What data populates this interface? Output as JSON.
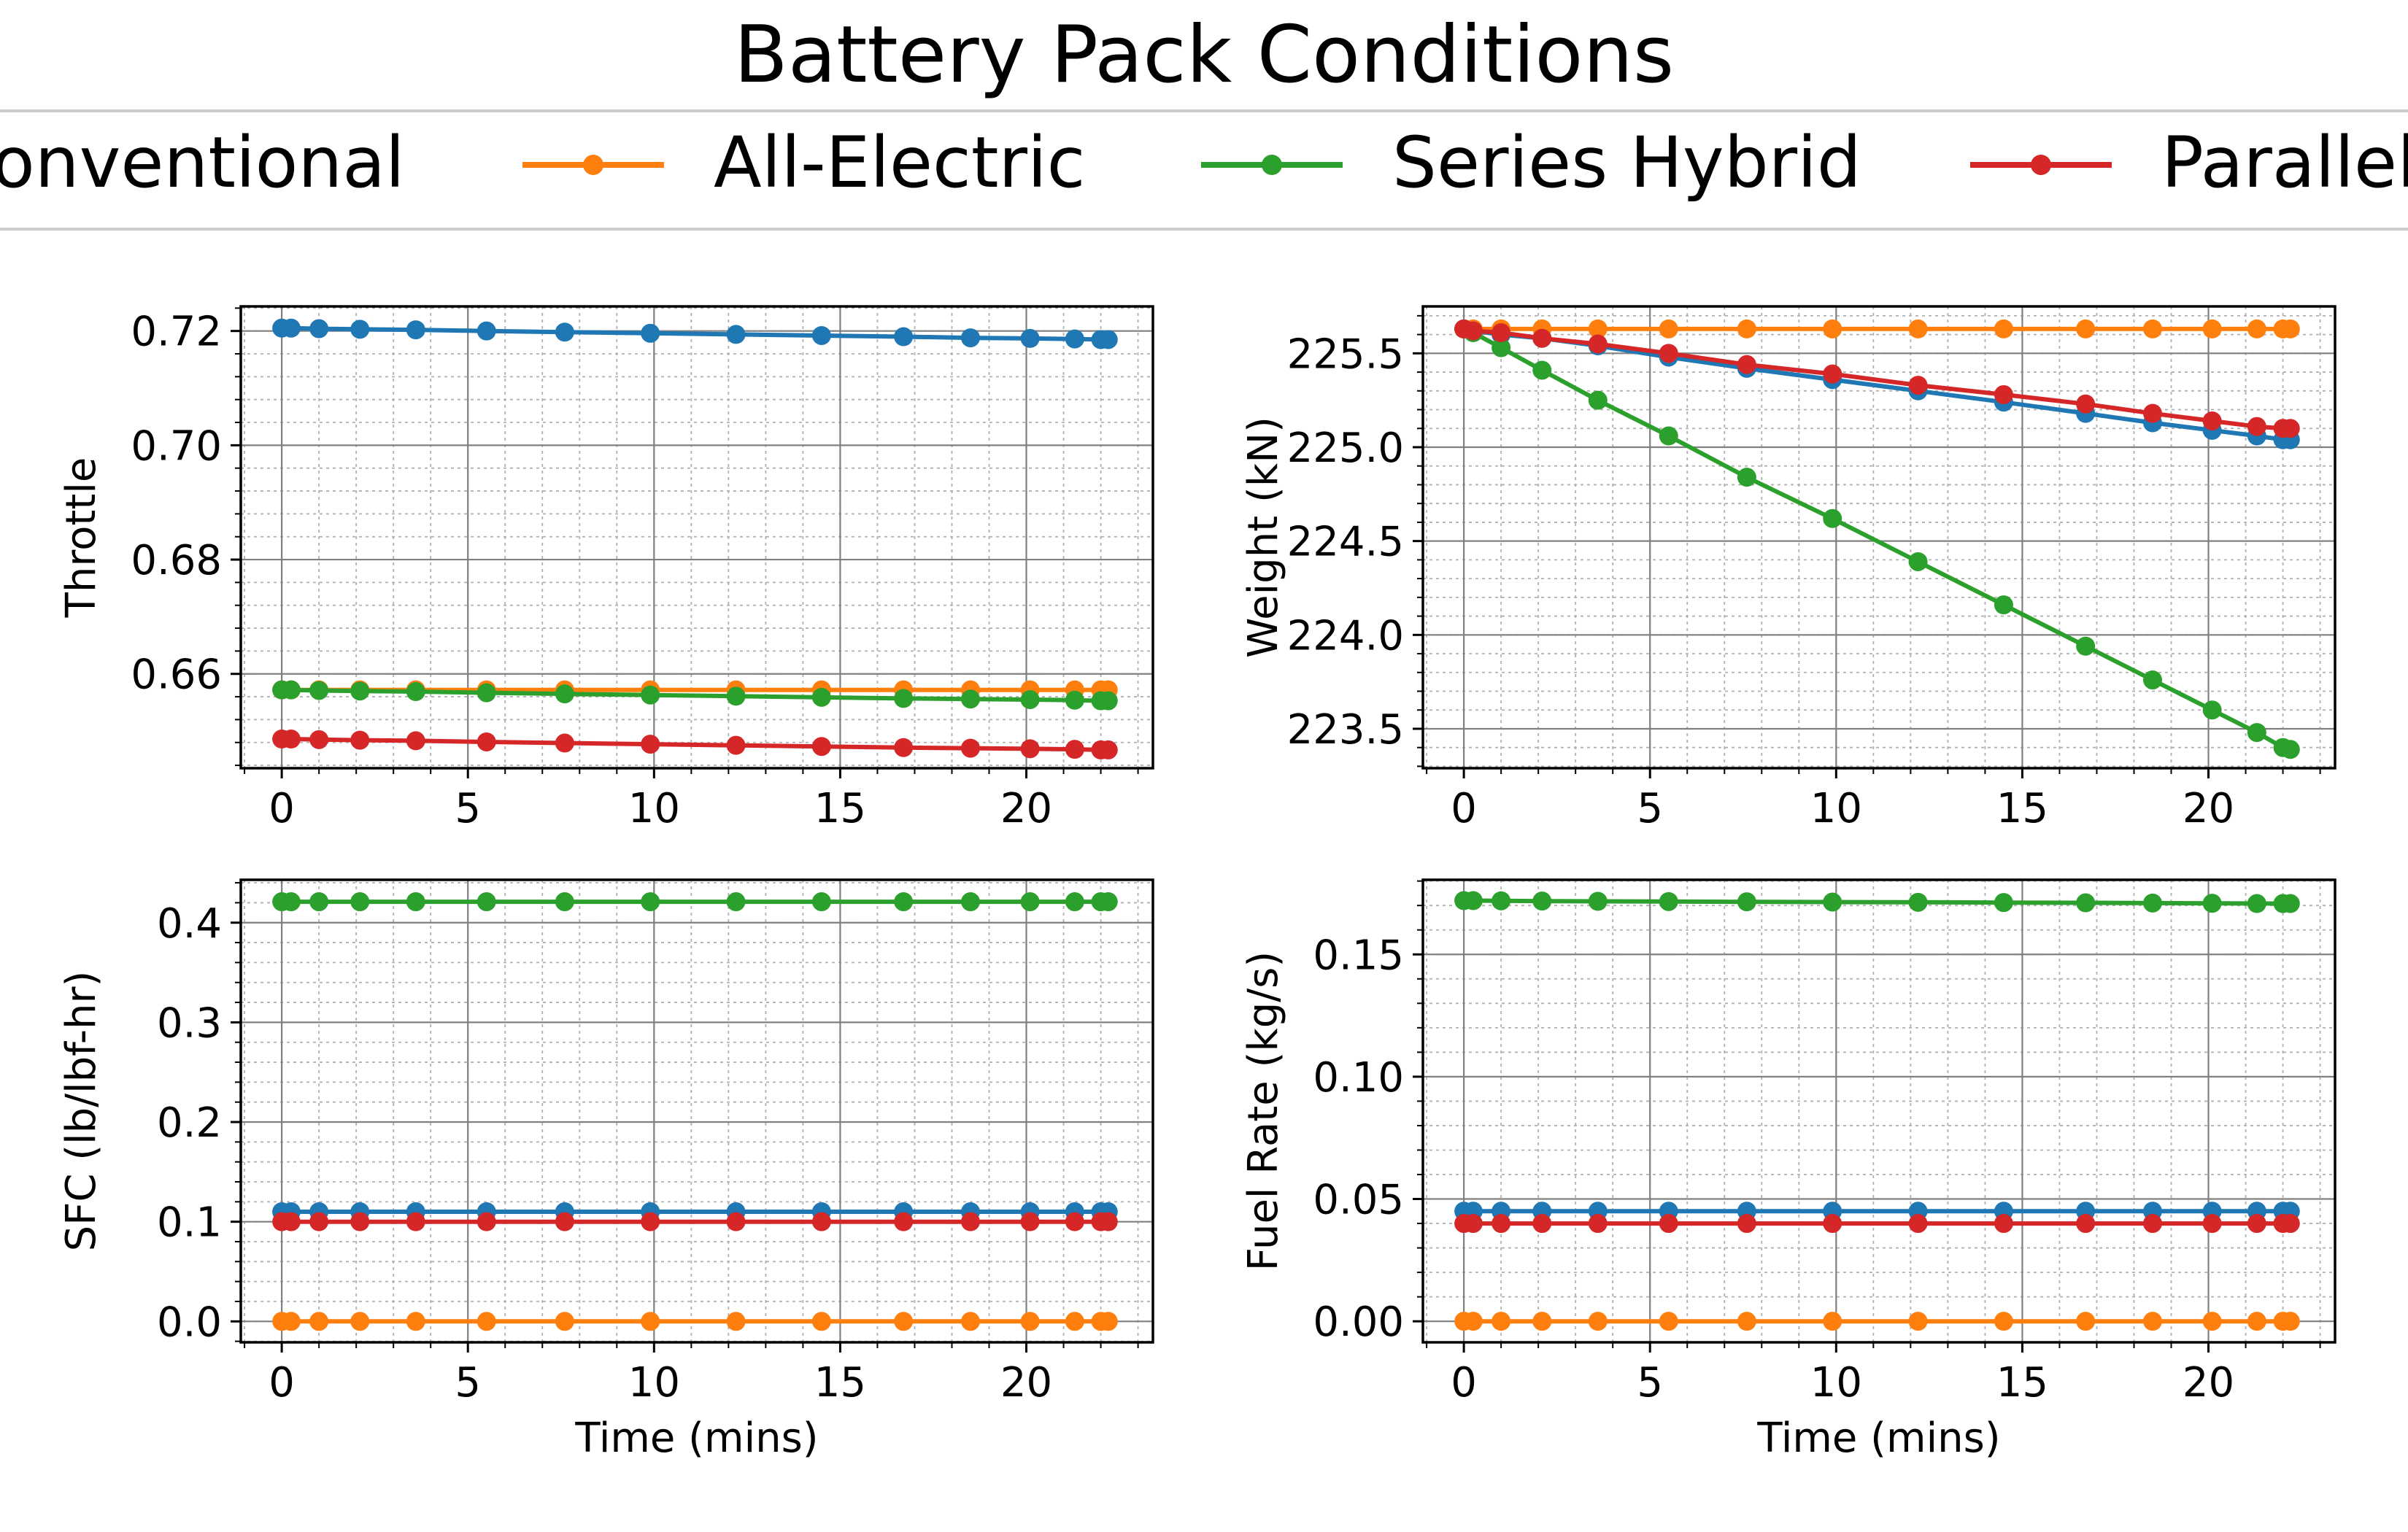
{
  "title": "Battery Pack Conditions",
  "legend": {
    "placement": "top-center",
    "entries": [
      {
        "name": "Conventional",
        "color": "#1f77b4"
      },
      {
        "name": "All-Electric",
        "color": "#ff7f0e"
      },
      {
        "name": "Series Hybrid",
        "color": "#2ca02c"
      },
      {
        "name": "Parallel Hybrid",
        "color": "#d62728"
      }
    ]
  },
  "chart_data": [
    {
      "type": "line",
      "title": "",
      "xlabel": "",
      "ylabel": "Throttle",
      "xlim": [
        -1.1,
        23.4
      ],
      "ylim": [
        0.6435,
        0.7243
      ],
      "grid": true,
      "xticks": [
        0,
        5,
        10,
        15,
        20
      ],
      "xtick_labels": [
        "0",
        "5",
        "10",
        "15",
        "20"
      ],
      "yticks": [
        0.66,
        0.68,
        0.7,
        0.72
      ],
      "ytick_labels": [
        "0.66",
        "0.68",
        "0.70",
        "0.72"
      ],
      "x": [
        0,
        0.25,
        1.0,
        2.1,
        3.6,
        5.5,
        7.6,
        9.9,
        12.2,
        14.5,
        16.7,
        18.5,
        20.1,
        21.3,
        22.0,
        22.2
      ],
      "series": [
        {
          "name": "Conventional",
          "color": "#1f77b4",
          "values": [
            0.7205,
            0.7205,
            0.7204,
            0.7203,
            0.7202,
            0.72,
            0.7198,
            0.7196,
            0.7194,
            0.7192,
            0.719,
            0.7188,
            0.7187,
            0.7186,
            0.7185,
            0.7185
          ]
        },
        {
          "name": "All-Electric",
          "color": "#ff7f0e",
          "values": [
            0.6572,
            0.6572,
            0.6572,
            0.6572,
            0.6572,
            0.6572,
            0.6572,
            0.6572,
            0.6572,
            0.6572,
            0.6572,
            0.6572,
            0.6572,
            0.6572,
            0.6572,
            0.6572
          ]
        },
        {
          "name": "Series Hybrid",
          "color": "#2ca02c",
          "values": [
            0.6572,
            0.6572,
            0.6571,
            0.657,
            0.6569,
            0.6567,
            0.6565,
            0.6563,
            0.6561,
            0.6559,
            0.6557,
            0.6556,
            0.6555,
            0.6554,
            0.6553,
            0.6553
          ]
        },
        {
          "name": "Parallel Hybrid",
          "color": "#d62728",
          "values": [
            0.6486,
            0.6486,
            0.6485,
            0.6484,
            0.6483,
            0.6481,
            0.6479,
            0.6477,
            0.6475,
            0.6473,
            0.6471,
            0.647,
            0.6469,
            0.6468,
            0.6467,
            0.6467
          ]
        }
      ]
    },
    {
      "type": "line",
      "title": "",
      "xlabel": "",
      "ylabel": "Weight (kN)",
      "xlim": [
        -1.1,
        23.4
      ],
      "ylim": [
        223.29,
        225.75
      ],
      "grid": true,
      "xticks": [
        0,
        5,
        10,
        15,
        20
      ],
      "xtick_labels": [
        "0",
        "5",
        "10",
        "15",
        "20"
      ],
      "yticks": [
        223.5,
        224.0,
        224.5,
        225.0,
        225.5
      ],
      "ytick_labels": [
        "223.5",
        "224.0",
        "224.5",
        "225.0",
        "225.5"
      ],
      "x": [
        0,
        0.25,
        1.0,
        2.1,
        3.6,
        5.5,
        7.6,
        9.9,
        12.2,
        14.5,
        16.7,
        18.5,
        20.1,
        21.3,
        22.0,
        22.2
      ],
      "series": [
        {
          "name": "Conventional",
          "color": "#1f77b4",
          "values": [
            225.63,
            225.62,
            225.6,
            225.58,
            225.54,
            225.48,
            225.42,
            225.36,
            225.3,
            225.24,
            225.18,
            225.13,
            225.09,
            225.06,
            225.04,
            225.04
          ]
        },
        {
          "name": "All-Electric",
          "color": "#ff7f0e",
          "values": [
            225.63,
            225.63,
            225.63,
            225.63,
            225.63,
            225.63,
            225.63,
            225.63,
            225.63,
            225.63,
            225.63,
            225.63,
            225.63,
            225.63,
            225.63,
            225.63
          ]
        },
        {
          "name": "Series Hybrid",
          "color": "#2ca02c",
          "values": [
            225.63,
            225.61,
            225.53,
            225.41,
            225.25,
            225.06,
            224.84,
            224.62,
            224.39,
            224.16,
            223.94,
            223.76,
            223.6,
            223.48,
            223.4,
            223.39
          ]
        },
        {
          "name": "Parallel Hybrid",
          "color": "#d62728",
          "values": [
            225.63,
            225.62,
            225.61,
            225.58,
            225.55,
            225.5,
            225.44,
            225.39,
            225.33,
            225.28,
            225.23,
            225.18,
            225.14,
            225.11,
            225.1,
            225.1
          ]
        }
      ]
    },
    {
      "type": "line",
      "title": "",
      "xlabel": "Time (mins)",
      "ylabel": "SFC (lb/lbf-hr)",
      "xlim": [
        -1.1,
        23.4
      ],
      "ylim": [
        -0.021,
        0.443
      ],
      "grid": true,
      "xticks": [
        0,
        5,
        10,
        15,
        20
      ],
      "xtick_labels": [
        "0",
        "5",
        "10",
        "15",
        "20"
      ],
      "yticks": [
        0.0,
        0.1,
        0.2,
        0.3,
        0.4
      ],
      "ytick_labels": [
        "0.0",
        "0.1",
        "0.2",
        "0.3",
        "0.4"
      ],
      "x": [
        0,
        0.25,
        1.0,
        2.1,
        3.6,
        5.5,
        7.6,
        9.9,
        12.2,
        14.5,
        16.7,
        18.5,
        20.1,
        21.3,
        22.0,
        22.2
      ],
      "series": [
        {
          "name": "Conventional",
          "color": "#1f77b4",
          "values": [
            0.11,
            0.11,
            0.11,
            0.11,
            0.11,
            0.11,
            0.11,
            0.11,
            0.11,
            0.11,
            0.11,
            0.11,
            0.11,
            0.11,
            0.11,
            0.11
          ]
        },
        {
          "name": "All-Electric",
          "color": "#ff7f0e",
          "values": [
            0.0,
            0.0,
            0.0,
            0.0,
            0.0,
            0.0,
            0.0,
            0.0,
            0.0,
            0.0,
            0.0,
            0.0,
            0.0,
            0.0,
            0.0,
            0.0
          ]
        },
        {
          "name": "Series Hybrid",
          "color": "#2ca02c",
          "values": [
            0.421,
            0.421,
            0.421,
            0.421,
            0.421,
            0.421,
            0.421,
            0.421,
            0.421,
            0.421,
            0.421,
            0.421,
            0.421,
            0.421,
            0.421,
            0.421
          ]
        },
        {
          "name": "Parallel Hybrid",
          "color": "#d62728",
          "values": [
            0.1,
            0.1,
            0.1,
            0.1,
            0.1,
            0.1,
            0.1,
            0.1,
            0.1,
            0.1,
            0.1,
            0.1,
            0.1,
            0.1,
            0.1,
            0.1
          ]
        }
      ]
    },
    {
      "type": "line",
      "title": "",
      "xlabel": "Time (mins)",
      "ylabel": "Fuel Rate (kg/s)",
      "xlim": [
        -1.1,
        23.4
      ],
      "ylim": [
        -0.0086,
        0.1805
      ],
      "grid": true,
      "xticks": [
        0,
        5,
        10,
        15,
        20
      ],
      "xtick_labels": [
        "0",
        "5",
        "10",
        "15",
        "20"
      ],
      "yticks": [
        0.0,
        0.05,
        0.1,
        0.15
      ],
      "ytick_labels": [
        "0.00",
        "0.05",
        "0.10",
        "0.15"
      ],
      "x": [
        0,
        0.25,
        1.0,
        2.1,
        3.6,
        5.5,
        7.6,
        9.9,
        12.2,
        14.5,
        16.7,
        18.5,
        20.1,
        21.3,
        22.0,
        22.2
      ],
      "series": [
        {
          "name": "Conventional",
          "color": "#1f77b4",
          "values": [
            0.045,
            0.045,
            0.045,
            0.045,
            0.045,
            0.045,
            0.045,
            0.045,
            0.045,
            0.045,
            0.045,
            0.045,
            0.045,
            0.045,
            0.045,
            0.045
          ]
        },
        {
          "name": "All-Electric",
          "color": "#ff7f0e",
          "values": [
            0.0,
            0.0,
            0.0,
            0.0,
            0.0,
            0.0,
            0.0,
            0.0,
            0.0,
            0.0,
            0.0,
            0.0,
            0.0,
            0.0,
            0.0,
            0.0
          ]
        },
        {
          "name": "Series Hybrid",
          "color": "#2ca02c",
          "values": [
            0.172,
            0.172,
            0.1719,
            0.1718,
            0.1717,
            0.1716,
            0.1715,
            0.1714,
            0.1713,
            0.1712,
            0.1711,
            0.171,
            0.1709,
            0.1708,
            0.1708,
            0.1708
          ]
        },
        {
          "name": "Parallel Hybrid",
          "color": "#d62728",
          "values": [
            0.04,
            0.04,
            0.04,
            0.04,
            0.04,
            0.04,
            0.04,
            0.04,
            0.04,
            0.04,
            0.04,
            0.04,
            0.04,
            0.04,
            0.04,
            0.04
          ]
        }
      ]
    }
  ]
}
